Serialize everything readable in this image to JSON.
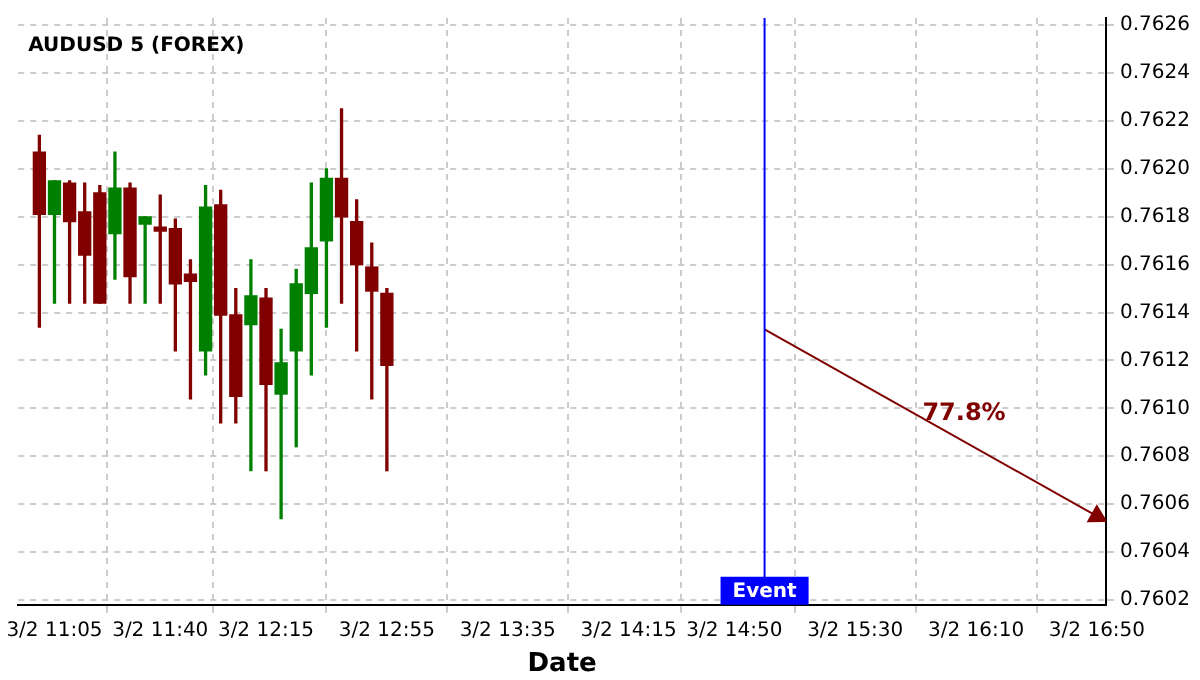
{
  "chart_data": {
    "type": "candlestick",
    "title": "AUDUSD 5 (FOREX)",
    "xlabel": "Date",
    "x": [
      "--03-02T11:00",
      "--03-02T11:05",
      "--03-02T11:10",
      "--03-02T11:15",
      "--03-02T11:20",
      "--03-02T11:25",
      "--03-02T11:30",
      "--03-02T11:35",
      "--03-02T11:40",
      "--03-02T11:45",
      "--03-02T11:50",
      "--03-02T11:55",
      "--03-02T12:00",
      "--03-02T12:05",
      "--03-02T12:10",
      "--03-02T12:15",
      "--03-02T12:20",
      "--03-02T12:25",
      "--03-02T12:30",
      "--03-02T12:35",
      "--03-02T12:40",
      "--03-02T12:45",
      "--03-02T12:50",
      "--03-02T12:55"
    ],
    "ohlc": [
      [
        0.76207,
        0.76214,
        0.76134,
        0.76181
      ],
      [
        0.76181,
        0.76195,
        0.76144,
        0.76195
      ],
      [
        0.76194,
        0.76195,
        0.76144,
        0.76178
      ],
      [
        0.76182,
        0.76194,
        0.76144,
        0.76164
      ],
      [
        0.7619,
        0.76193,
        0.76144,
        0.76144
      ],
      [
        0.76173,
        0.76207,
        0.76154,
        0.76192
      ],
      [
        0.76192,
        0.76194,
        0.76144,
        0.76155
      ],
      [
        0.76177,
        0.7618,
        0.76144,
        0.7618
      ],
      [
        0.76175,
        0.76189,
        0.76144,
        0.76174
      ],
      [
        0.76175,
        0.76179,
        0.76124,
        0.76152
      ],
      [
        0.76156,
        0.76162,
        0.76104,
        0.76153
      ],
      [
        0.76124,
        0.76193,
        0.76114,
        0.76184
      ],
      [
        0.76185,
        0.76191,
        0.76094,
        0.76139
      ],
      [
        0.76139,
        0.7615,
        0.76094,
        0.76105
      ],
      [
        0.76135,
        0.76162,
        0.76074,
        0.76147
      ],
      [
        0.76146,
        0.7615,
        0.76074,
        0.7611
      ],
      [
        0.76106,
        0.76133,
        0.76054,
        0.76119
      ],
      [
        0.76124,
        0.76158,
        0.76084,
        0.76152
      ],
      [
        0.76148,
        0.76194,
        0.76114,
        0.76167
      ],
      [
        0.7617,
        0.762,
        0.76134,
        0.76196
      ],
      [
        0.76196,
        0.76225,
        0.76144,
        0.7618
      ],
      [
        0.76178,
        0.76187,
        0.76124,
        0.7616
      ],
      [
        0.76159,
        0.76169,
        0.76104,
        0.76149
      ],
      [
        0.76148,
        0.7615,
        0.76074,
        0.76118
      ]
    ],
    "colors": [
      "#800000",
      "#008000",
      "#800000",
      "#800000",
      "#800000",
      "#008000",
      "#800000",
      "#008000",
      "#800000",
      "#800000",
      "#800000",
      "#008000",
      "#800000",
      "#800000",
      "#008000",
      "#800000",
      "#008000",
      "#008000",
      "#008000",
      "#008000",
      "#800000",
      "#800000",
      "#800000",
      "#800000"
    ],
    "series": [
      {
        "type": "line",
        "x": [
          "--03-02T15:00",
          "--03-02T16:50"
        ],
        "values": [
          0.76133,
          0.76055
        ],
        "color": "#800000"
      }
    ],
    "annotations": [
      "77.8%"
    ],
    "ref_lines": [
      {
        "axis": "x",
        "value": "--03-02T15:00",
        "label": "Event",
        "color": "#0000ff"
      }
    ],
    "xlim": [
      "--03-02T10:53",
      "--03-02T16:53"
    ],
    "xticks": [
      {
        "value": "--03-02T11:05",
        "label": "3/2 11:05"
      },
      {
        "value": "--03-02T11:40",
        "label": "3/2 11:40"
      },
      {
        "value": "--03-02T12:15",
        "label": "3/2 12:15"
      },
      {
        "value": "--03-02T12:55",
        "label": "3/2 12:55"
      },
      {
        "value": "--03-02T13:35",
        "label": "3/2 13:35"
      },
      {
        "value": "--03-02T14:15",
        "label": "3/2 14:15"
      },
      {
        "value": "--03-02T14:50",
        "label": "3/2 14:50"
      },
      {
        "value": "--03-02T15:30",
        "label": "3/2 15:30"
      },
      {
        "value": "--03-02T16:10",
        "label": "3/2 16:10"
      },
      {
        "value": "--03-02T16:50",
        "label": "3/2 16:50"
      }
    ],
    "ylim": [
      0.76018,
      0.76263
    ],
    "yticks": [
      0.7602,
      0.7604,
      0.7606,
      0.7608,
      {
        "value": 0.761,
        "label": "0.7610"
      },
      0.7612,
      0.7614,
      0.7616,
      0.7618,
      {
        "value": 0.762,
        "label": "0.7620"
      },
      0.7622,
      0.7624,
      0.7626
    ],
    "grid": true,
    "legend": false
  }
}
